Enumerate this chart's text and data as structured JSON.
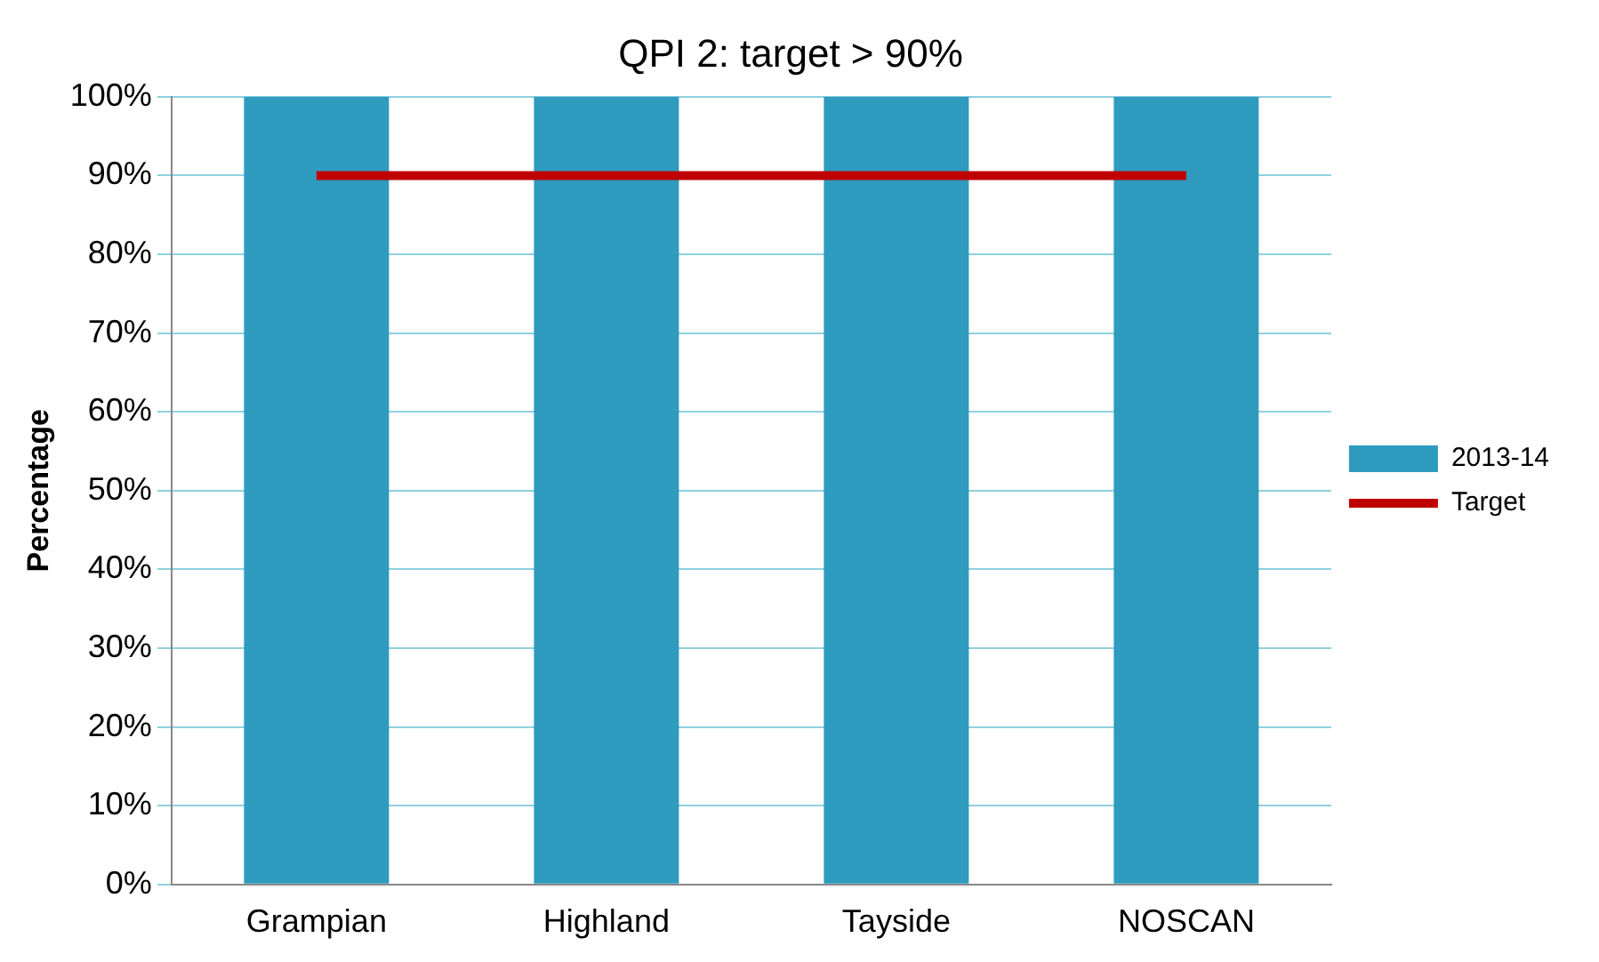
{
  "chart_data": {
    "type": "bar",
    "title": "QPI 2: target > 90%",
    "ylabel": "Percentage",
    "categories": [
      "Grampian",
      "Highland",
      "Tayside",
      "NOSCAN"
    ],
    "series": [
      {
        "name": "2013-14",
        "color": "#2e9bbf",
        "values": [
          100,
          100,
          100,
          100
        ]
      },
      {
        "name": "Target",
        "type": "line",
        "color": "#c00000",
        "values": [
          90,
          90,
          90,
          90
        ]
      }
    ],
    "ylim": [
      0,
      100
    ],
    "yticks": [
      {
        "value": 0,
        "label": "0%"
      },
      {
        "value": 10,
        "label": "10%"
      },
      {
        "value": 20,
        "label": "20%"
      },
      {
        "value": 30,
        "label": "30%"
      },
      {
        "value": 40,
        "label": "40%"
      },
      {
        "value": 50,
        "label": "50%"
      },
      {
        "value": 60,
        "label": "60%"
      },
      {
        "value": 70,
        "label": "70%"
      },
      {
        "value": 80,
        "label": "80%"
      },
      {
        "value": 90,
        "label": "90%"
      },
      {
        "value": 100,
        "label": "100%"
      }
    ],
    "grid": "y",
    "legend": "right"
  }
}
